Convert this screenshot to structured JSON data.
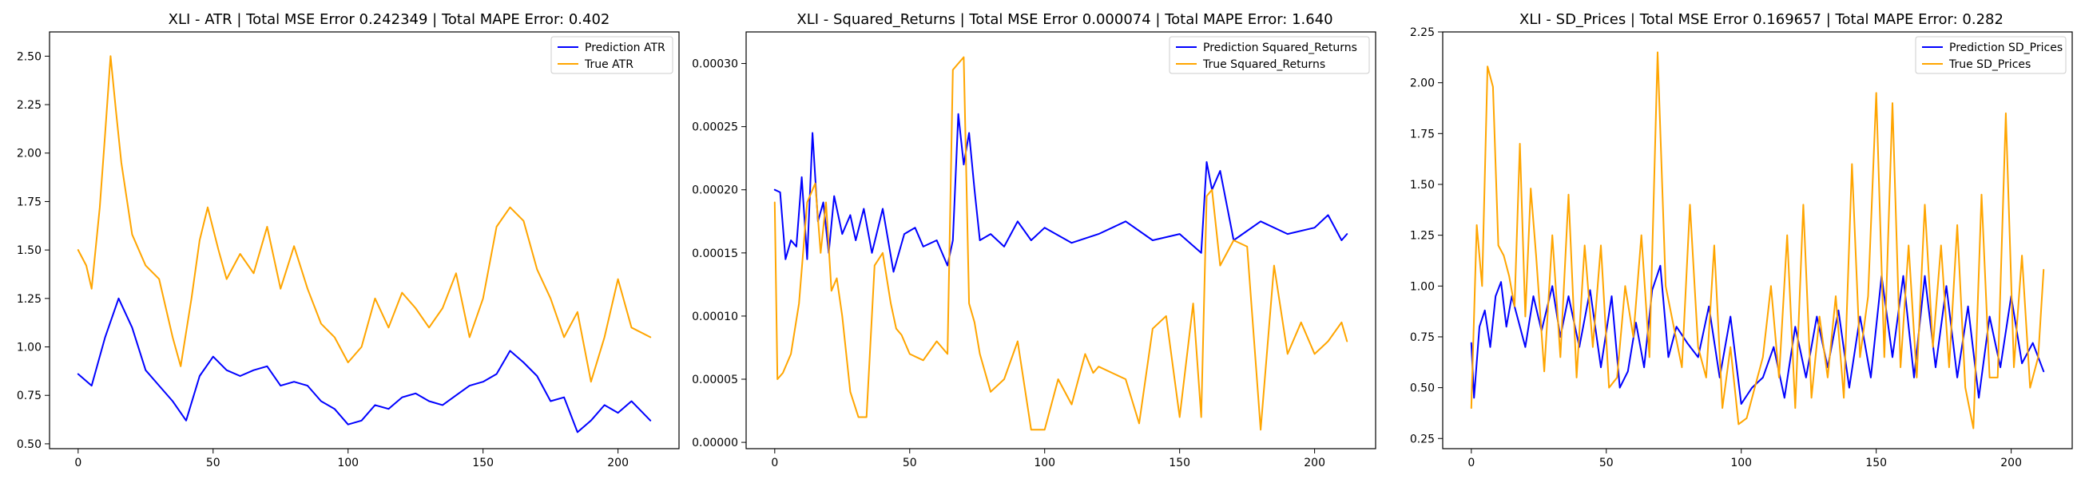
{
  "chart_data": [
    {
      "type": "line",
      "title": "XLI - ATR | Total MSE Error 0.242349 | Total MAPE Error: 0.402",
      "xlabel": "",
      "ylabel": "",
      "xlim": [
        -10.6,
        222.6
      ],
      "ylim": [
        0.475,
        2.625
      ],
      "xticks": [
        0,
        50,
        100,
        150,
        200
      ],
      "xtick_labels": [
        "0",
        "50",
        "100",
        "150",
        "200"
      ],
      "yticks": [
        0.5,
        0.75,
        1.0,
        1.25,
        1.5,
        1.75,
        2.0,
        2.25,
        2.5
      ],
      "ytick_labels": [
        "0.50",
        "0.75",
        "1.00",
        "1.25",
        "1.50",
        "1.75",
        "2.00",
        "2.25",
        "2.50"
      ],
      "grid": false,
      "legend_position": "top-right",
      "series": [
        {
          "name": "Prediction ATR",
          "color": "#0000ff",
          "x": [
            0,
            5,
            10,
            15,
            20,
            25,
            30,
            35,
            40,
            45,
            50,
            55,
            60,
            65,
            70,
            75,
            80,
            85,
            90,
            95,
            100,
            105,
            110,
            115,
            120,
            125,
            130,
            135,
            140,
            145,
            150,
            155,
            160,
            165,
            170,
            175,
            180,
            185,
            190,
            195,
            200,
            205,
            212
          ],
          "y": [
            0.86,
            0.8,
            1.05,
            1.25,
            1.1,
            0.88,
            0.8,
            0.72,
            0.62,
            0.85,
            0.95,
            0.88,
            0.85,
            0.88,
            0.9,
            0.8,
            0.82,
            0.8,
            0.72,
            0.68,
            0.6,
            0.62,
            0.7,
            0.68,
            0.74,
            0.76,
            0.72,
            0.7,
            0.75,
            0.8,
            0.82,
            0.86,
            0.98,
            0.92,
            0.85,
            0.72,
            0.74,
            0.56,
            0.62,
            0.7,
            0.66,
            0.72,
            0.62
          ]
        },
        {
          "name": "True ATR",
          "color": "#ffa500",
          "x": [
            0,
            3,
            5,
            8,
            10,
            12,
            14,
            16,
            20,
            25,
            30,
            35,
            38,
            42,
            45,
            48,
            52,
            55,
            60,
            65,
            70,
            75,
            80,
            85,
            90,
            95,
            100,
            105,
            110,
            115,
            120,
            125,
            130,
            135,
            140,
            145,
            150,
            155,
            160,
            165,
            170,
            175,
            180,
            185,
            190,
            195,
            200,
            205,
            212
          ],
          "y": [
            1.5,
            1.42,
            1.3,
            1.72,
            2.1,
            2.5,
            2.22,
            1.95,
            1.58,
            1.42,
            1.35,
            1.05,
            0.9,
            1.25,
            1.55,
            1.72,
            1.5,
            1.35,
            1.48,
            1.38,
            1.62,
            1.3,
            1.52,
            1.3,
            1.12,
            1.05,
            0.92,
            1.0,
            1.25,
            1.1,
            1.28,
            1.2,
            1.1,
            1.2,
            1.38,
            1.05,
            1.25,
            1.62,
            1.72,
            1.65,
            1.4,
            1.25,
            1.05,
            1.18,
            0.82,
            1.05,
            1.35,
            1.1,
            1.05
          ]
        }
      ]
    },
    {
      "type": "line",
      "title": "XLI - Squared_Returns | Total MSE Error 0.000074 | Total MAPE Error: 1.640",
      "xlabel": "",
      "ylabel": "",
      "xlim": [
        -10.6,
        222.6
      ],
      "ylim": [
        -5e-06,
        0.000325
      ],
      "xticks": [
        0,
        50,
        100,
        150,
        200
      ],
      "xtick_labels": [
        "0",
        "50",
        "100",
        "150",
        "200"
      ],
      "yticks": [
        0.0,
        5e-05,
        0.0001,
        0.00015,
        0.0002,
        0.00025,
        0.0003
      ],
      "ytick_labels": [
        "0.00000",
        "0.00005",
        "0.00010",
        "0.00015",
        "0.00020",
        "0.00025",
        "0.00030"
      ],
      "grid": false,
      "legend_position": "top-right",
      "series": [
        {
          "name": "Prediction Squared_Returns",
          "color": "#0000ff",
          "x": [
            0,
            2,
            4,
            6,
            8,
            10,
            12,
            14,
            16,
            18,
            20,
            22,
            25,
            28,
            30,
            33,
            36,
            40,
            44,
            48,
            52,
            55,
            60,
            64,
            66,
            68,
            70,
            72,
            74,
            76,
            80,
            85,
            90,
            95,
            100,
            110,
            120,
            130,
            140,
            150,
            158,
            160,
            162,
            165,
            170,
            180,
            190,
            200,
            205,
            210,
            212
          ],
          "y": [
            0.0002,
            0.000198,
            0.000145,
            0.00016,
            0.000155,
            0.00021,
            0.000145,
            0.000245,
            0.000175,
            0.00019,
            0.00015,
            0.000195,
            0.000165,
            0.00018,
            0.00016,
            0.000185,
            0.00015,
            0.000185,
            0.000135,
            0.000165,
            0.00017,
            0.000155,
            0.00016,
            0.00014,
            0.00016,
            0.00026,
            0.00022,
            0.000245,
            0.0002,
            0.00016,
            0.000165,
            0.000155,
            0.000175,
            0.00016,
            0.00017,
            0.000158,
            0.000165,
            0.000175,
            0.00016,
            0.000165,
            0.00015,
            0.000222,
            0.0002,
            0.000215,
            0.00016,
            0.000175,
            0.000165,
            0.00017,
            0.00018,
            0.00016,
            0.000165
          ]
        },
        {
          "name": "True Squared_Returns",
          "color": "#ffa500",
          "x": [
            0,
            1,
            3,
            6,
            9,
            12,
            15,
            17,
            19,
            21,
            23,
            25,
            28,
            31,
            34,
            37,
            40,
            43,
            45,
            47,
            50,
            55,
            60,
            64,
            66,
            68,
            70,
            72,
            74,
            76,
            80,
            85,
            90,
            95,
            100,
            105,
            110,
            115,
            118,
            120,
            125,
            130,
            135,
            140,
            145,
            150,
            155,
            158,
            160,
            162,
            165,
            170,
            175,
            180,
            185,
            190,
            195,
            200,
            205,
            210,
            212
          ],
          "y": [
            0.00019,
            5e-05,
            5.5e-05,
            7e-05,
            0.00011,
            0.00019,
            0.000205,
            0.00015,
            0.00019,
            0.00012,
            0.00013,
            0.0001,
            4e-05,
            2e-05,
            2e-05,
            0.00014,
            0.00015,
            0.00011,
            9e-05,
            8.5e-05,
            7e-05,
            6.5e-05,
            8e-05,
            7e-05,
            0.000295,
            0.0003,
            0.000305,
            0.00011,
            9.5e-05,
            7e-05,
            4e-05,
            5e-05,
            8e-05,
            1e-05,
            1e-05,
            5e-05,
            3e-05,
            7e-05,
            5.5e-05,
            6e-05,
            5.5e-05,
            5e-05,
            1.5e-05,
            9e-05,
            0.0001,
            2e-05,
            0.00011,
            2e-05,
            0.000195,
            0.0002,
            0.00014,
            0.00016,
            0.000155,
            1e-05,
            0.00014,
            7e-05,
            9.5e-05,
            7e-05,
            8e-05,
            9.5e-05,
            8e-05
          ]
        }
      ]
    },
    {
      "type": "line",
      "title": "XLI - SD_Prices | Total MSE Error 0.169657 | Total MAPE Error: 0.282",
      "xlabel": "",
      "ylabel": "",
      "xlim": [
        -10.6,
        222.6
      ],
      "ylim": [
        0.2,
        2.25
      ],
      "xticks": [
        0,
        50,
        100,
        150,
        200
      ],
      "xtick_labels": [
        "0",
        "50",
        "100",
        "150",
        "200"
      ],
      "yticks": [
        0.25,
        0.5,
        0.75,
        1.0,
        1.25,
        1.5,
        1.75,
        2.0,
        2.25
      ],
      "ytick_labels": [
        "0.25",
        "0.50",
        "0.75",
        "1.00",
        "1.25",
        "1.50",
        "1.75",
        "2.00",
        "2.25"
      ],
      "grid": false,
      "legend_position": "top-right",
      "series": [
        {
          "name": "Prediction SD_Prices",
          "color": "#0000ff",
          "x": [
            0,
            1,
            3,
            5,
            7,
            9,
            11,
            13,
            15,
            17,
            20,
            23,
            26,
            30,
            33,
            36,
            40,
            44,
            48,
            52,
            55,
            58,
            61,
            64,
            67,
            70,
            73,
            76,
            80,
            84,
            88,
            92,
            96,
            100,
            104,
            108,
            112,
            116,
            120,
            124,
            128,
            132,
            136,
            140,
            144,
            148,
            152,
            156,
            160,
            164,
            168,
            172,
            176,
            180,
            184,
            188,
            192,
            196,
            200,
            204,
            208,
            212
          ],
          "y": [
            0.72,
            0.45,
            0.8,
            0.88,
            0.7,
            0.95,
            1.02,
            0.8,
            0.95,
            0.85,
            0.7,
            0.95,
            0.78,
            1.0,
            0.75,
            0.95,
            0.7,
            0.98,
            0.6,
            0.95,
            0.5,
            0.58,
            0.82,
            0.6,
            0.98,
            1.1,
            0.65,
            0.8,
            0.72,
            0.65,
            0.9,
            0.55,
            0.85,
            0.42,
            0.5,
            0.55,
            0.7,
            0.45,
            0.8,
            0.55,
            0.85,
            0.6,
            0.88,
            0.5,
            0.85,
            0.55,
            1.05,
            0.65,
            1.05,
            0.55,
            1.05,
            0.6,
            1.0,
            0.55,
            0.9,
            0.45,
            0.85,
            0.6,
            0.95,
            0.62,
            0.72,
            0.58
          ]
        },
        {
          "name": "True SD_Prices",
          "color": "#ffa500",
          "x": [
            0,
            2,
            4,
            6,
            8,
            10,
            12,
            14,
            16,
            18,
            20,
            22,
            24,
            27,
            30,
            33,
            36,
            39,
            42,
            45,
            48,
            51,
            54,
            57,
            60,
            63,
            66,
            69,
            72,
            75,
            78,
            81,
            84,
            87,
            90,
            93,
            96,
            99,
            102,
            105,
            108,
            111,
            114,
            117,
            120,
            123,
            126,
            129,
            132,
            135,
            138,
            141,
            144,
            147,
            150,
            153,
            156,
            159,
            162,
            165,
            168,
            171,
            174,
            177,
            180,
            183,
            186,
            189,
            192,
            195,
            198,
            201,
            204,
            207,
            210,
            212
          ],
          "y": [
            0.4,
            1.3,
            1.0,
            2.08,
            1.98,
            1.2,
            1.15,
            1.05,
            0.9,
            1.7,
            0.85,
            1.48,
            1.15,
            0.58,
            1.25,
            0.65,
            1.45,
            0.55,
            1.2,
            0.7,
            1.2,
            0.5,
            0.55,
            1.0,
            0.75,
            1.25,
            0.65,
            2.15,
            1.0,
            0.8,
            0.6,
            1.4,
            0.7,
            0.55,
            1.2,
            0.4,
            0.7,
            0.32,
            0.35,
            0.5,
            0.65,
            1.0,
            0.55,
            1.25,
            0.4,
            1.4,
            0.45,
            0.85,
            0.55,
            0.95,
            0.45,
            1.6,
            0.65,
            0.95,
            1.95,
            0.65,
            1.9,
            0.6,
            1.2,
            0.55,
            1.4,
            0.7,
            1.2,
            0.6,
            1.3,
            0.5,
            0.3,
            1.45,
            0.55,
            0.55,
            1.85,
            0.6,
            1.15,
            0.5,
            0.65,
            1.08
          ]
        }
      ]
    }
  ]
}
